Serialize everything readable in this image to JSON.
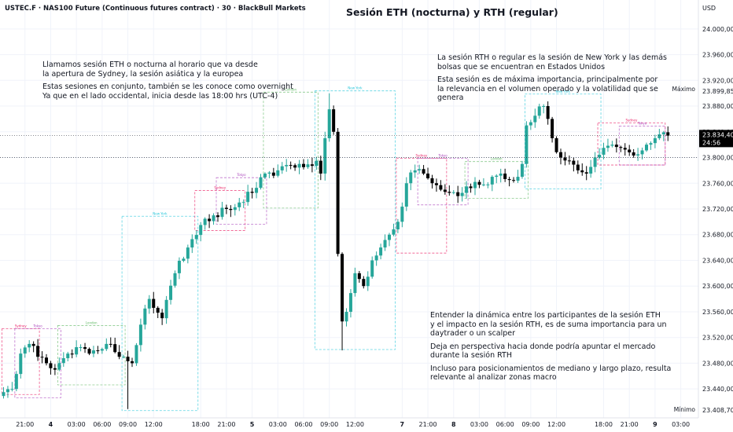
{
  "header": {
    "symbol": "USTEC.F · NAS100 Future (Continuous futures contract) · 30 · BlackBull Markets",
    "title": "Sesión ETH (nocturna) y RTH (regular)",
    "currency": "USD"
  },
  "annotations": {
    "eth_note": {
      "para1": [
        "Llamamos sesión ETH o nocturna al horario que va desde",
        "la apertura de Sydney, la sesión asiática y la europea"
      ],
      "para2": [
        "Estas sesiones en conjunto, también se les conoce como overnight",
        "Ya que en el lado occidental, inicia desde las 18:00 hrs (UTC-4)"
      ]
    },
    "rth_note": {
      "para1": [
        "La sesión RTH o regular es la sesión de New York y las demás",
        "bolsas que se encuentran en Estados Unidos"
      ],
      "para2": [
        "Esta sesión es de máxima importancia, principalmente por",
        "la relevancia en el volumen operado y la volatilidad que se",
        "genera"
      ]
    },
    "dynamics_note": {
      "para1": [
        "Entender la dinámica entre los participantes de la sesión ETH",
        "y el impacto en la sesión RTH, es de suma importancia para un",
        "daytrader o un scalper"
      ],
      "para2": [
        "Deja en perspectiva hacia donde podría apuntar el mercado",
        "durante la sesión RTH"
      ],
      "para3": [
        "Incluso para posicionamientos de mediano y largo plazo, resulta",
        "relevante al analizar zonas macro"
      ]
    }
  },
  "chart_data": {
    "type": "candlestick",
    "title": "Sesión ETH (nocturna) y RTH (regular)",
    "symbol": "USTEC.F",
    "timeframe": "30",
    "ylim": [
      23395,
      24045
    ],
    "y_ticks": [
      23440,
      23480,
      23520,
      23560,
      23600,
      23640,
      23680,
      23720,
      23760,
      23800,
      23840,
      23880,
      23920,
      23960,
      24000
    ],
    "y_tick_labels": [
      "23.440,00",
      "23.480,00",
      "23.520,00",
      "23.560,00",
      "23.600,00",
      "23.640,00",
      "23.680,00",
      "23.720,00",
      "23.760,00",
      "23.800,00",
      "23.840,00",
      "23.880,00",
      "23.920,00",
      "23.960,00",
      "24.000,00"
    ],
    "x_ticks": [
      {
        "label": "21:00",
        "i": 5
      },
      {
        "label": "4",
        "i": 11
      },
      {
        "label": "03:00",
        "i": 17
      },
      {
        "label": "06:00",
        "i": 23
      },
      {
        "label": "09:00",
        "i": 29
      },
      {
        "label": "12:00",
        "i": 35
      },
      {
        "label": "18:00",
        "i": 46
      },
      {
        "label": "21:00",
        "i": 52
      },
      {
        "label": "5",
        "i": 58
      },
      {
        "label": "03:00",
        "i": 64
      },
      {
        "label": "06:00",
        "i": 70
      },
      {
        "label": "09:00",
        "i": 76
      },
      {
        "label": "12:00",
        "i": 82
      },
      {
        "label": "7",
        "i": 93
      },
      {
        "label": "21:00",
        "i": 99
      },
      {
        "label": "8",
        "i": 105
      },
      {
        "label": "03:00",
        "i": 111
      },
      {
        "label": "06:00",
        "i": 117
      },
      {
        "label": "09:00",
        "i": 123
      },
      {
        "label": "12:00",
        "i": 129
      },
      {
        "label": "18:00",
        "i": 140
      },
      {
        "label": "21:00",
        "i": 146
      },
      {
        "label": "9",
        "i": 152
      },
      {
        "label": "03:00",
        "i": 158
      }
    ],
    "bold_ticks": [
      "4",
      "5",
      "7",
      "8",
      "9"
    ],
    "current_price": {
      "value": 23834.4,
      "label": "23.834,40",
      "countdown": "24:56"
    },
    "max": {
      "label": "Máximo",
      "value": 23899.85,
      "value_label": "23.899,85"
    },
    "min": {
      "label": "Mínimo",
      "value": 23408.7,
      "value_label": "23.408,70"
    },
    "anchors": [
      {
        "i": 0,
        "c": 23435
      },
      {
        "i": 2,
        "c": 23440
      },
      {
        "i": 4,
        "c": 23495
      },
      {
        "i": 6,
        "c": 23510
      },
      {
        "i": 8,
        "c": 23490
      },
      {
        "i": 10,
        "c": 23480
      },
      {
        "i": 12,
        "c": 23470
      },
      {
        "i": 15,
        "c": 23495
      },
      {
        "i": 18,
        "c": 23505
      },
      {
        "i": 21,
        "c": 23500
      },
      {
        "i": 24,
        "c": 23510
      },
      {
        "i": 27,
        "c": 23490
      },
      {
        "i": 30,
        "c": 23480
      },
      {
        "i": 32,
        "c": 23540
      },
      {
        "i": 34,
        "c": 23580
      },
      {
        "i": 37,
        "c": 23550
      },
      {
        "i": 40,
        "c": 23620
      },
      {
        "i": 43,
        "c": 23660
      },
      {
        "i": 46,
        "c": 23695
      },
      {
        "i": 49,
        "c": 23710
      },
      {
        "i": 52,
        "c": 23720
      },
      {
        "i": 55,
        "c": 23730
      },
      {
        "i": 58,
        "c": 23745
      },
      {
        "i": 61,
        "c": 23775
      },
      {
        "i": 64,
        "c": 23780
      },
      {
        "i": 67,
        "c": 23788
      },
      {
        "i": 70,
        "c": 23785
      },
      {
        "i": 73,
        "c": 23795
      },
      {
        "i": 74,
        "c": 23775
      },
      {
        "i": 75,
        "c": 23830
      },
      {
        "i": 76,
        "c": 23875
      },
      {
        "i": 77,
        "c": 23840
      },
      {
        "i": 78,
        "c": 23650
      },
      {
        "i": 79,
        "c": 23545
      },
      {
        "i": 80,
        "c": 23560
      },
      {
        "i": 82,
        "c": 23620
      },
      {
        "i": 84,
        "c": 23600
      },
      {
        "i": 86,
        "c": 23640
      },
      {
        "i": 88,
        "c": 23660
      },
      {
        "i": 90,
        "c": 23680
      },
      {
        "i": 92,
        "c": 23700
      },
      {
        "i": 94,
        "c": 23760
      },
      {
        "i": 96,
        "c": 23780
      },
      {
        "i": 98,
        "c": 23775
      },
      {
        "i": 100,
        "c": 23760
      },
      {
        "i": 102,
        "c": 23750
      },
      {
        "i": 104,
        "c": 23745
      },
      {
        "i": 106,
        "c": 23740
      },
      {
        "i": 108,
        "c": 23755
      },
      {
        "i": 110,
        "c": 23762
      },
      {
        "i": 112,
        "c": 23758
      },
      {
        "i": 114,
        "c": 23770
      },
      {
        "i": 116,
        "c": 23775
      },
      {
        "i": 118,
        "c": 23765
      },
      {
        "i": 120,
        "c": 23770
      },
      {
        "i": 121,
        "c": 23790
      },
      {
        "i": 122,
        "c": 23850
      },
      {
        "i": 124,
        "c": 23865
      },
      {
        "i": 126,
        "c": 23880
      },
      {
        "i": 127,
        "c": 23860
      },
      {
        "i": 128,
        "c": 23830
      },
      {
        "i": 130,
        "c": 23800
      },
      {
        "i": 132,
        "c": 23795
      },
      {
        "i": 134,
        "c": 23780
      },
      {
        "i": 136,
        "c": 23775
      },
      {
        "i": 138,
        "c": 23800
      },
      {
        "i": 140,
        "c": 23815
      },
      {
        "i": 142,
        "c": 23820
      },
      {
        "i": 144,
        "c": 23815
      },
      {
        "i": 146,
        "c": 23808
      },
      {
        "i": 148,
        "c": 23805
      },
      {
        "i": 150,
        "c": 23820
      },
      {
        "i": 152,
        "c": 23830
      },
      {
        "i": 153,
        "c": 23836
      },
      {
        "i": 155,
        "c": 23834
      }
    ],
    "sessions": [
      {
        "label": "Sydney",
        "kind": "sydney",
        "i0": 0,
        "i1": 8,
        "lo": 23435,
        "hi": 23530
      },
      {
        "label": "Tokyo",
        "kind": "tokyo",
        "i0": 3,
        "i1": 13,
        "lo": 23430,
        "hi": 23530
      },
      {
        "label": "London",
        "kind": "london",
        "i0": 13,
        "i1": 28,
        "lo": 23450,
        "hi": 23535
      },
      {
        "label": "New York",
        "kind": "newyork",
        "i0": 28,
        "i1": 45,
        "lo": 23410,
        "hi": 23705
      },
      {
        "label": "Sydney",
        "kind": "sydney",
        "i0": 45,
        "i1": 56,
        "lo": 23690,
        "hi": 23745
      },
      {
        "label": "Tokyo",
        "kind": "tokyo",
        "i0": 50,
        "i1": 61,
        "lo": 23700,
        "hi": 23765
      },
      {
        "label": "London",
        "kind": "london",
        "i0": 61,
        "i1": 73,
        "lo": 23725,
        "hi": 23898
      },
      {
        "label": "New York",
        "kind": "newyork",
        "i0": 73,
        "i1": 91,
        "lo": 23505,
        "hi": 23900
      },
      {
        "label": "Sydney",
        "kind": "sydney",
        "i0": 92,
        "i1": 103,
        "lo": 23655,
        "hi": 23795
      },
      {
        "label": "Tokyo",
        "kind": "tokyo",
        "i0": 97,
        "i1": 108,
        "lo": 23730,
        "hi": 23795
      },
      {
        "label": "London",
        "kind": "london",
        "i0": 108,
        "i1": 122,
        "lo": 23740,
        "hi": 23790
      },
      {
        "label": "New York",
        "kind": "newyork",
        "i0": 122,
        "i1": 139,
        "lo": 23755,
        "hi": 23895
      },
      {
        "label": "Sydney",
        "kind": "sydney",
        "i0": 139,
        "i1": 154,
        "lo": 23792,
        "hi": 23850
      },
      {
        "label": "Tokyo",
        "kind": "tokyo",
        "i0": 144,
        "i1": 154,
        "lo": 23792,
        "hi": 23845
      }
    ],
    "colors": {
      "up": "#26a69a",
      "down": "#000000",
      "grid": "#f0f3fa",
      "sydney": "#e91e63",
      "tokyo": "#ab47bc",
      "london": "#66bb6a",
      "newyork": "#26c6da",
      "axis_text": "#131722",
      "price_tag": "#000000"
    }
  }
}
